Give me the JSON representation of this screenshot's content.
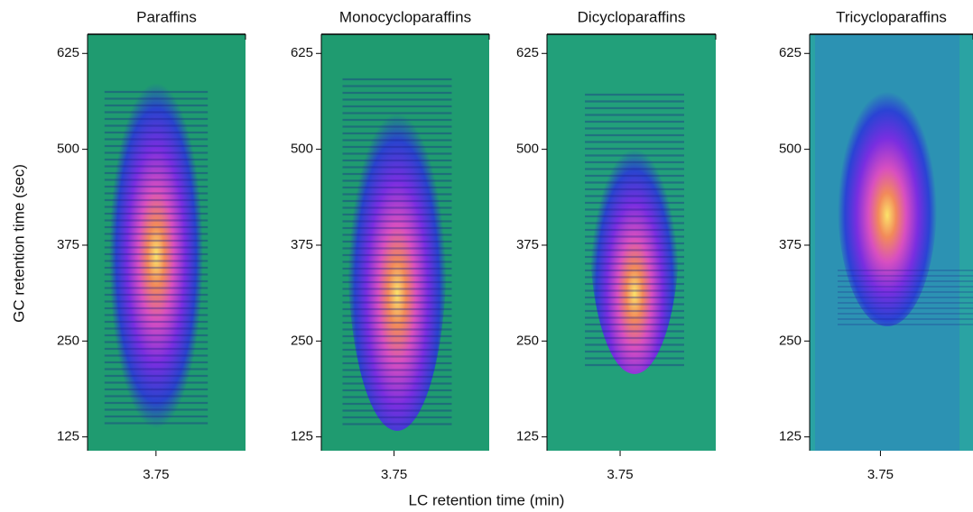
{
  "chart_data": [
    {
      "type": "heatmap",
      "title": "Paraffins",
      "color": "#1f9b70",
      "xlim": [
        3.1,
        4.6
      ],
      "xticks": [
        3.75
      ],
      "ylim": [
        107,
        650
      ],
      "yticks": [
        125,
        250,
        375,
        500,
        625
      ]
    },
    {
      "type": "heatmap",
      "title": "Monocycloparaffins",
      "color": "#1f9b70",
      "xlim": [
        3.1,
        4.6
      ],
      "xticks": [
        3.75
      ],
      "ylim": [
        107,
        650
      ],
      "yticks": [
        125,
        250,
        375,
        500,
        625
      ]
    },
    {
      "type": "heatmap",
      "title": "Dicycloparaffins",
      "color": "#22a07a",
      "xlim": [
        3.1,
        4.6
      ],
      "xticks": [
        3.75
      ],
      "ylim": [
        107,
        650
      ],
      "yticks": [
        125,
        250,
        375,
        500,
        625
      ]
    },
    {
      "type": "heatmap",
      "title": "Tricycloparaffins",
      "color": "#2aa3a3",
      "xlim": [
        3.1,
        4.6
      ],
      "xticks": [
        3.75
      ],
      "ylim": [
        107,
        650
      ],
      "yticks": [
        125,
        250,
        375,
        500,
        625
      ]
    }
  ],
  "shared_axes": {
    "xlabel": "LC retention time (min)",
    "ylabel": "GC retention time (sec)"
  }
}
